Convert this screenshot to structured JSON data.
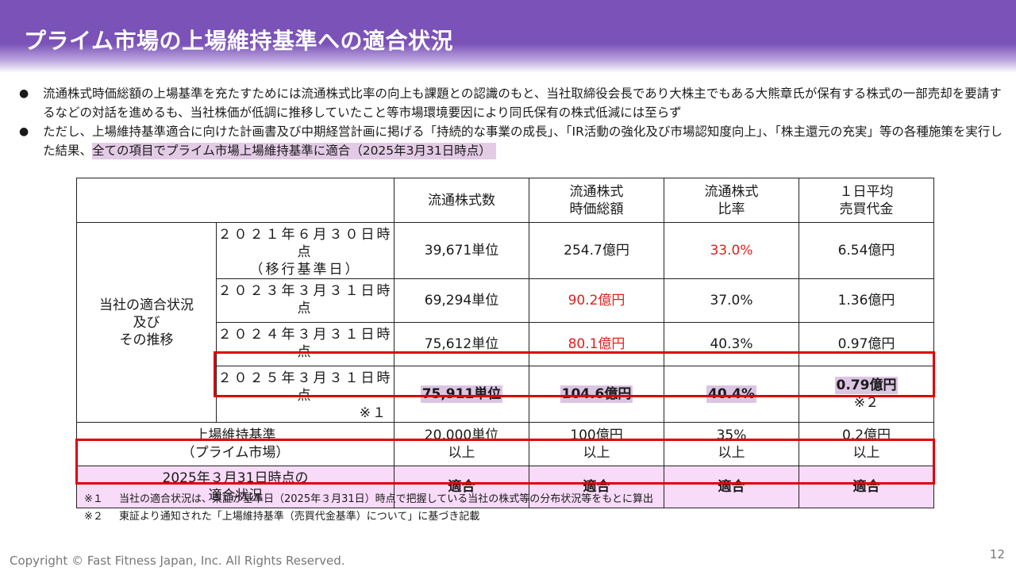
{
  "title": "プライム市場の上場維持基準への適合状況",
  "bullets": [
    {
      "text": "流通株式時価総額の上場基準を充たすためには流通株式比率の向上も課題との認識のもと、当社取締役会長であり大株主でもある大熊章氏が保有する株式の一部売却を要請するなどの対話を進めるも、当社株価が低調に推移していたこと等市場環境要因により同氏保有の株式低減には至らず"
    },
    {
      "text": "ただし、上場維持基準適合に向けた計画書及び中期経営計画に掲げる「持続的な事業の成長」、「IR活動の強化及び市場認知度向上」、「株主還元の充実」等の各種施策を実行した結果、",
      "highlight": "全ての項目でプライム市場上場維持基準に適合（2025年3月31日時点）"
    }
  ],
  "table": {
    "headers": [
      "流通株式数",
      "流通株式\n時価総額",
      "流通株式\n比率",
      "１日平均\n売買代金"
    ],
    "group_label": "当社の適合状況\n及び\nその推移",
    "rows": [
      {
        "date": "２０２１年６月３０日時点",
        "sub": "（移行基準日）",
        "cells": [
          "39,671単位",
          "254.7億円",
          "33.0%",
          "6.54億円"
        ]
      },
      {
        "date": "２０２３年３月３１日時点",
        "sub": "",
        "cells": [
          "69,294単位",
          "90.2億円",
          "37.0%",
          "1.36億円"
        ]
      },
      {
        "date": "２０２４年３月３１日時点",
        "sub": "",
        "cells": [
          "75,612単位",
          "80.1億円",
          "40.3%",
          "0.97億円"
        ]
      },
      {
        "date": "２０２５年３月３１日時点",
        "sub": "※１",
        "cells": [
          "75,911単位",
          "104.6億円",
          "40.4%",
          "0.79億円"
        ],
        "cell_note": "※２"
      }
    ],
    "standard_label": "上場維持基準\n（プライム市場）",
    "standard_cells": [
      "20,000単位\n以上",
      "100億円\n以上",
      "35%\n以上",
      "0.2億円\n以上"
    ],
    "result_label": "2025年３月31日時点の\n適合状況",
    "result_cells": [
      "適合",
      "適合",
      "適合",
      "適合"
    ]
  },
  "notes": [
    {
      "mark": "※１",
      "text": "当社の適合状況は、東証が基準日（2025年３月31日）時点で把握している当社の株式等の分布状況等をもとに算出"
    },
    {
      "mark": "※２",
      "text": "東証より通知された「上場維持基準（売買代金基準）について」に基づき記載"
    }
  ],
  "footer": {
    "copyright": "Copyright © Fast Fitness Japan, Inc. All Rights Reserved.",
    "page": "12"
  },
  "colors": {
    "header": "#7b52b8",
    "alert_red": "#e02020",
    "highlight": "#e3cbe6",
    "result_bg": "#f8dbf8"
  }
}
